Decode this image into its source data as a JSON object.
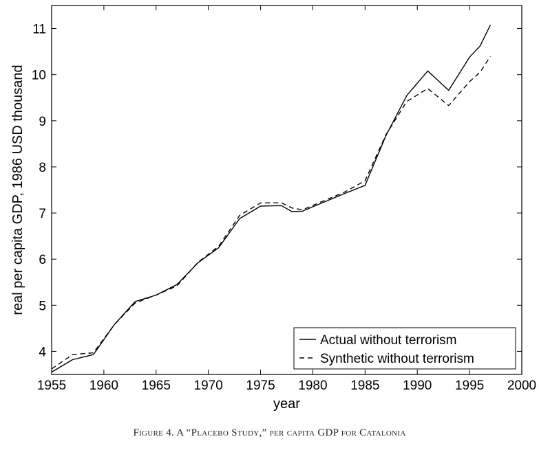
{
  "chart_data": {
    "type": "line",
    "title": "",
    "xlabel": "year",
    "ylabel": "real per capita GDP, 1986 USD thousand",
    "xlim": [
      1955,
      2000
    ],
    "ylim": [
      3.5,
      11.5
    ],
    "x_ticks": [
      1955,
      1960,
      1965,
      1970,
      1975,
      1980,
      1985,
      1990,
      1995,
      2000
    ],
    "y_ticks": [
      4,
      5,
      6,
      7,
      8,
      9,
      10,
      11
    ],
    "grid": false,
    "legend_position": "bottom-right",
    "x": [
      1955,
      1957,
      1959,
      1961,
      1963,
      1965,
      1967,
      1969,
      1971,
      1973,
      1975,
      1977,
      1978,
      1979,
      1981,
      1983,
      1985,
      1987,
      1989,
      1991,
      1993,
      1995,
      1996,
      1997
    ],
    "series": [
      {
        "name": "Actual without terrorism",
        "style": "solid",
        "values": [
          3.55,
          3.82,
          3.93,
          4.58,
          5.08,
          5.22,
          5.45,
          5.92,
          6.25,
          6.88,
          7.15,
          7.16,
          7.03,
          7.04,
          7.23,
          7.42,
          7.6,
          8.68,
          9.55,
          10.08,
          9.66,
          10.38,
          10.62,
          11.08
        ]
      },
      {
        "name": "Synthetic without terrorism",
        "style": "dashed",
        "values": [
          3.62,
          3.93,
          3.97,
          4.58,
          5.05,
          5.22,
          5.42,
          5.93,
          6.28,
          6.95,
          7.22,
          7.22,
          7.11,
          7.07,
          7.26,
          7.45,
          7.7,
          8.7,
          9.42,
          9.7,
          9.33,
          9.85,
          10.05,
          10.4
        ]
      }
    ]
  },
  "caption": "Figure 4. A “Placebo Study,” per capita GDP for Catalonia"
}
